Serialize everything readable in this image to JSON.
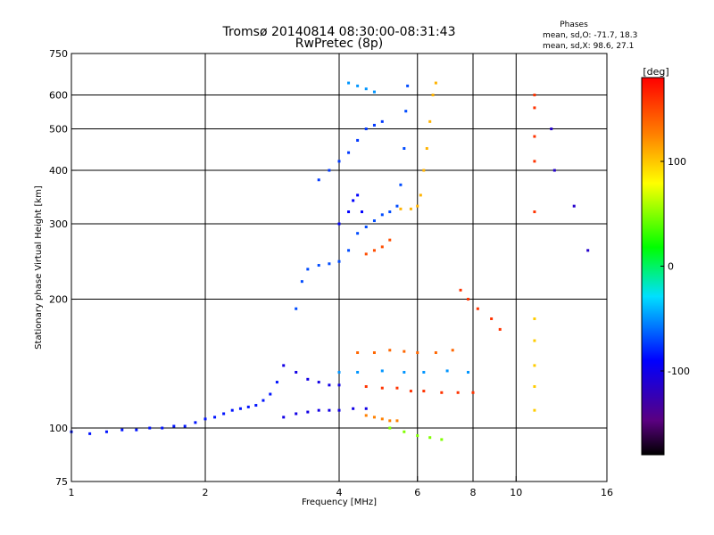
{
  "chart_data": {
    "type": "scatter",
    "title": "Tromsø 20140814 08:30:00-08:31:43",
    "subtitle": "RwPretec (8p)",
    "xlabel": "Frequency [MHz]",
    "ylabel": "Stationary phase Virtual Height [km]",
    "x_scale": "log",
    "y_scale": "log",
    "xlim": [
      1,
      16
    ],
    "ylim": [
      75,
      750
    ],
    "x_ticks": [
      1,
      2,
      4,
      6,
      8,
      10,
      16
    ],
    "x_tick_labels": [
      "1",
      "2",
      "4",
      "6",
      "8",
      "10",
      "16"
    ],
    "y_ticks": [
      75,
      100,
      200,
      300,
      400,
      500,
      600,
      750
    ],
    "y_tick_labels": [
      "75",
      "100",
      "200",
      "300",
      "400",
      "500",
      "600",
      "750"
    ],
    "grid": true,
    "phase_stats": {
      "header": "Phases",
      "o_line": "mean, sd,O: -71.7, 18.3",
      "x_line": "mean, sd,X:  98.6, 27.1"
    },
    "colorbar": {
      "label": "[deg]",
      "range": [
        -180,
        180
      ],
      "ticks": [
        100,
        0,
        -100
      ],
      "tick_labels": [
        "100",
        "0",
        "-100"
      ],
      "colormap": "rainbow (black -> violet -> blue -> cyan -> green -> yellow -> orange -> red)"
    },
    "traces": [
      {
        "name": "",
        "phase": -95,
        "points": [
          [
            1.0,
            98
          ],
          [
            1.1,
            97
          ],
          [
            1.2,
            98
          ],
          [
            1.3,
            99
          ],
          [
            1.4,
            99
          ],
          [
            1.5,
            100
          ],
          [
            1.6,
            100
          ],
          [
            1.7,
            101
          ],
          [
            1.8,
            101
          ],
          [
            1.9,
            103
          ],
          [
            2.0,
            105
          ],
          [
            2.1,
            106
          ],
          [
            2.2,
            108
          ],
          [
            2.3,
            110
          ],
          [
            2.4,
            111
          ],
          [
            2.5,
            112
          ],
          [
            2.6,
            113
          ],
          [
            2.7,
            116
          ],
          [
            2.8,
            120
          ],
          [
            2.9,
            128
          ]
        ]
      },
      {
        "name": "",
        "phase": -110,
        "points": [
          [
            3.0,
            106
          ],
          [
            3.2,
            108
          ],
          [
            3.4,
            109
          ],
          [
            3.6,
            110
          ],
          [
            3.8,
            110
          ],
          [
            4.0,
            110
          ],
          [
            4.3,
            111
          ],
          [
            4.6,
            111
          ]
        ]
      },
      {
        "name": "",
        "phase": -80,
        "points": [
          [
            3.2,
            190
          ],
          [
            3.3,
            220
          ],
          [
            3.4,
            235
          ],
          [
            3.6,
            240
          ],
          [
            3.8,
            242
          ],
          [
            4.0,
            245
          ],
          [
            4.2,
            260
          ],
          [
            4.4,
            285
          ],
          [
            4.6,
            295
          ],
          [
            4.8,
            305
          ],
          [
            5.0,
            315
          ],
          [
            5.2,
            320
          ],
          [
            5.4,
            330
          ],
          [
            5.5,
            370
          ],
          [
            5.6,
            450
          ],
          [
            5.65,
            550
          ],
          [
            5.7,
            630
          ]
        ]
      },
      {
        "name": "",
        "phase": -100,
        "points": [
          [
            4.0,
            300
          ],
          [
            4.2,
            320
          ],
          [
            4.3,
            340
          ],
          [
            4.4,
            350
          ],
          [
            4.5,
            320
          ]
        ]
      },
      {
        "name": "",
        "phase": -85,
        "points": [
          [
            3.6,
            380
          ],
          [
            3.8,
            400
          ],
          [
            4.0,
            420
          ],
          [
            4.2,
            440
          ],
          [
            4.4,
            470
          ],
          [
            4.6,
            500
          ],
          [
            4.8,
            510
          ],
          [
            5.0,
            520
          ]
        ]
      },
      {
        "name": "",
        "phase": -60,
        "points": [
          [
            4.2,
            640
          ],
          [
            4.4,
            630
          ],
          [
            4.6,
            620
          ],
          [
            4.8,
            610
          ]
        ]
      },
      {
        "name": "",
        "phase": 110,
        "points": [
          [
            5.5,
            325
          ],
          [
            5.8,
            325
          ],
          [
            6.0,
            330
          ],
          [
            6.1,
            350
          ],
          [
            6.2,
            400
          ],
          [
            6.3,
            450
          ],
          [
            6.4,
            520
          ],
          [
            6.5,
            600
          ],
          [
            6.6,
            640
          ]
        ]
      },
      {
        "name": "",
        "phase": 150,
        "points": [
          [
            4.6,
            255
          ],
          [
            4.8,
            260
          ],
          [
            5.0,
            265
          ],
          [
            5.2,
            275
          ]
        ]
      },
      {
        "name": "",
        "phase": 130,
        "points": [
          [
            4.6,
            107
          ],
          [
            4.8,
            106
          ],
          [
            5.0,
            105
          ],
          [
            5.2,
            104
          ],
          [
            5.4,
            104
          ]
        ]
      },
      {
        "name": "",
        "phase": 140,
        "points": [
          [
            4.4,
            150
          ],
          [
            4.8,
            150
          ],
          [
            5.2,
            152
          ],
          [
            5.6,
            151
          ],
          [
            6.0,
            150
          ],
          [
            6.6,
            150
          ],
          [
            7.2,
            152
          ]
        ]
      },
      {
        "name": "",
        "phase": 160,
        "points": [
          [
            4.6,
            125
          ],
          [
            5.0,
            124
          ],
          [
            5.4,
            124
          ],
          [
            5.8,
            122
          ],
          [
            6.2,
            122
          ],
          [
            6.8,
            121
          ],
          [
            7.4,
            121
          ],
          [
            8.0,
            121
          ]
        ]
      },
      {
        "name": "",
        "phase": -60,
        "points": [
          [
            4.0,
            135
          ],
          [
            4.4,
            135
          ],
          [
            5.0,
            136
          ],
          [
            5.6,
            135
          ],
          [
            6.2,
            135
          ],
          [
            7.0,
            136
          ],
          [
            7.8,
            135
          ]
        ]
      },
      {
        "name": "",
        "phase": -110,
        "points": [
          [
            3.0,
            140
          ],
          [
            3.2,
            135
          ],
          [
            3.4,
            130
          ],
          [
            3.6,
            128
          ],
          [
            3.8,
            126
          ],
          [
            4.0,
            126
          ]
        ]
      },
      {
        "name": "",
        "phase": 40,
        "points": [
          [
            5.2,
            100
          ],
          [
            5.6,
            98
          ],
          [
            6.0,
            96
          ],
          [
            6.4,
            95
          ],
          [
            6.8,
            94
          ]
        ]
      },
      {
        "name": "",
        "phase": 160,
        "points": [
          [
            11.0,
            600
          ],
          [
            11.0,
            560
          ],
          [
            11.0,
            480
          ],
          [
            11.0,
            420
          ],
          [
            11.0,
            320
          ]
        ]
      },
      {
        "name": "",
        "phase": 100,
        "points": [
          [
            11.0,
            180
          ],
          [
            11.0,
            160
          ],
          [
            11.0,
            140
          ],
          [
            11.0,
            125
          ],
          [
            11.0,
            110
          ]
        ]
      },
      {
        "name": "",
        "phase": 160,
        "points": [
          [
            7.5,
            210
          ],
          [
            7.8,
            200
          ],
          [
            8.2,
            190
          ],
          [
            8.8,
            180
          ],
          [
            9.2,
            170
          ]
        ]
      },
      {
        "name": "",
        "phase": -120,
        "points": [
          [
            12.0,
            500
          ],
          [
            12.2,
            400
          ],
          [
            13.5,
            330
          ],
          [
            14.5,
            260
          ]
        ]
      }
    ]
  }
}
